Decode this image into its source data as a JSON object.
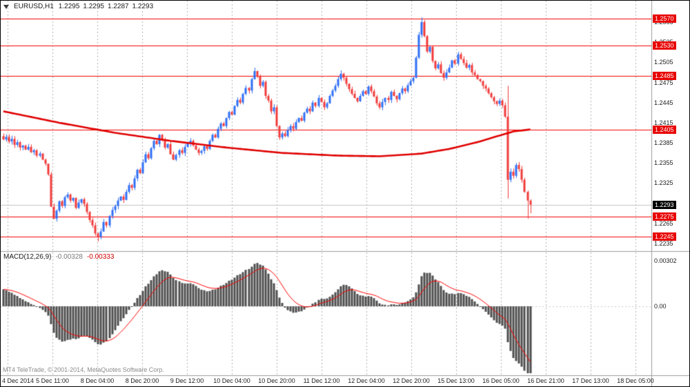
{
  "window": {
    "symbol": "EURUSD,H1",
    "open": "1.2295",
    "high": "1.2295",
    "low": "1.2287",
    "close": "1.2293"
  },
  "macd_label": {
    "name": "MACD(12,26,9)",
    "value": "-0.00328",
    "signal": "-0.00333"
  },
  "copyright": "MT4 TeleTrade, © 2001-2014, MetaQuotes Software Corp.",
  "colors": {
    "up": "#2e6ef5",
    "down": "#f23a3a",
    "ma": "#e00000",
    "hline": "#f40000",
    "macd_bars": "#4d4d4d",
    "macd_signal": "#ff0000",
    "bid_line": "#c4c4c4",
    "grid": "#b0b0b0",
    "frame": "#9a9a9a",
    "label_red_bg": "#e80000",
    "label_black_bg": "#000000"
  },
  "chart_data": {
    "type": "candlestick",
    "symbol": "EURUSD",
    "timeframe": "H1",
    "last_ohlc": {
      "open": 1.2295,
      "high": 1.2295,
      "low": 1.2287,
      "close": 1.2293
    },
    "bid": 1.2293,
    "hlines": [
      1.257,
      1.253,
      1.2485,
      1.2405,
      1.2275,
      1.2245
    ],
    "price_ticks": [
      1.2565,
      1.2535,
      1.2505,
      1.2475,
      1.2445,
      1.2415,
      1.2385,
      1.2355,
      1.2325,
      1.2295,
      1.2265,
      1.2235
    ],
    "macd_axis": [
      {
        "v": 0.00302,
        "label": "0.00302"
      },
      {
        "v": 0,
        "label": "0.00"
      }
    ],
    "macd_params": {
      "fast": 12,
      "slow": 26,
      "signal": 9
    },
    "time_labels": [
      "4 Dec 2014",
      "5 Dec 11:00",
      "8 Dec 04:00",
      "8 Dec 20:00",
      "9 Dec 12:00",
      "10 Dec 04:00",
      "10 Dec 20:00",
      "11 Dec 12:00",
      "12 Dec 04:00",
      "12 Dec 20:00",
      "15 Dec 13:00",
      "16 Dec 05:00",
      "16 Dec 21:00",
      "17 Dec 13:00",
      "18 Dec 05:00"
    ],
    "open_first": 1.2395,
    "closes": [
      1.239,
      1.2394,
      1.2387,
      1.2391,
      1.2382,
      1.2386,
      1.2378,
      1.2381,
      1.2375,
      1.2379,
      1.2371,
      1.2374,
      1.2366,
      1.2369,
      1.236,
      1.2354,
      1.2338,
      1.229,
      1.2272,
      1.2284,
      1.2298,
      1.2291,
      1.2304,
      1.2308,
      1.2299,
      1.2303,
      1.2288,
      1.2296,
      1.2301,
      1.2294,
      1.2282,
      1.227,
      1.2262,
      1.225,
      1.2245,
      1.2253,
      1.2267,
      1.2262,
      1.2276,
      1.2285,
      1.2291,
      1.2299,
      1.2305,
      1.23,
      1.2312,
      1.2322,
      1.2318,
      1.2332,
      1.2345,
      1.234,
      1.2356,
      1.2368,
      1.2362,
      1.2377,
      1.2388,
      1.2383,
      1.2397,
      1.239,
      1.2378,
      1.2383,
      1.2368,
      1.236,
      1.2367,
      1.2374,
      1.237,
      1.2379,
      1.2384,
      1.2388,
      1.2381,
      1.2375,
      1.237,
      1.2373,
      1.238,
      1.2376,
      1.2388,
      1.2397,
      1.2393,
      1.2406,
      1.2414,
      1.241,
      1.2422,
      1.2431,
      1.2427,
      1.244,
      1.2449,
      1.2445,
      1.2458,
      1.2467,
      1.2463,
      1.248,
      1.2492,
      1.2485,
      1.247,
      1.2476,
      1.2455,
      1.2448,
      1.2432,
      1.2438,
      1.241,
      1.2393,
      1.2399,
      1.2395,
      1.2404,
      1.241,
      1.2406,
      1.2416,
      1.2422,
      1.2418,
      1.243,
      1.2436,
      1.2432,
      1.2445,
      1.244,
      1.2452,
      1.2446,
      1.2438,
      1.2444,
      1.2455,
      1.2463,
      1.247,
      1.248,
      1.2488,
      1.2482,
      1.2473,
      1.2465,
      1.2458,
      1.2452,
      1.2447,
      1.2455,
      1.2462,
      1.2458,
      1.2469,
      1.2462,
      1.2454,
      1.2444,
      1.2438,
      1.2446,
      1.2452,
      1.2449,
      1.2461,
      1.2455,
      1.245,
      1.2459,
      1.2466,
      1.2462,
      1.2471,
      1.2477,
      1.2482,
      1.2512,
      1.2546,
      1.2565,
      1.2544,
      1.2521,
      1.2528,
      1.2507,
      1.2496,
      1.2502,
      1.2489,
      1.2482,
      1.249,
      1.2497,
      1.2508,
      1.2503,
      1.2517,
      1.251,
      1.2504,
      1.2497,
      1.2501,
      1.249,
      1.2486,
      1.248,
      1.2477,
      1.247,
      1.2466,
      1.2459,
      1.2453,
      1.2447,
      1.2443,
      1.2448,
      1.2441,
      1.2424,
      1.233,
      1.2342,
      1.2336,
      1.2352,
      1.2346,
      1.233,
      1.2312,
      1.2299,
      1.2293
    ],
    "wick_overrides": {
      "16": {
        "high": 1.2352
      },
      "34": {
        "low": 1.2238
      },
      "90": {
        "high": 1.2497
      },
      "121": {
        "high": 1.2493
      },
      "150": {
        "high": 1.2572
      },
      "181": {
        "high": 1.247,
        "low": 1.2302
      },
      "188": {
        "low": 1.2272
      },
      "189": {
        "low": 1.228
      }
    },
    "ma_waypoints": [
      [
        0,
        1.2432
      ],
      [
        20,
        1.2415
      ],
      [
        40,
        1.24
      ],
      [
        60,
        1.2388
      ],
      [
        80,
        1.2378
      ],
      [
        100,
        1.237
      ],
      [
        120,
        1.2366
      ],
      [
        135,
        1.2365
      ],
      [
        150,
        1.2369
      ],
      [
        160,
        1.2376
      ],
      [
        170,
        1.2386
      ],
      [
        178,
        1.2396
      ],
      [
        183,
        1.2402
      ],
      [
        189,
        1.2405
      ]
    ]
  }
}
